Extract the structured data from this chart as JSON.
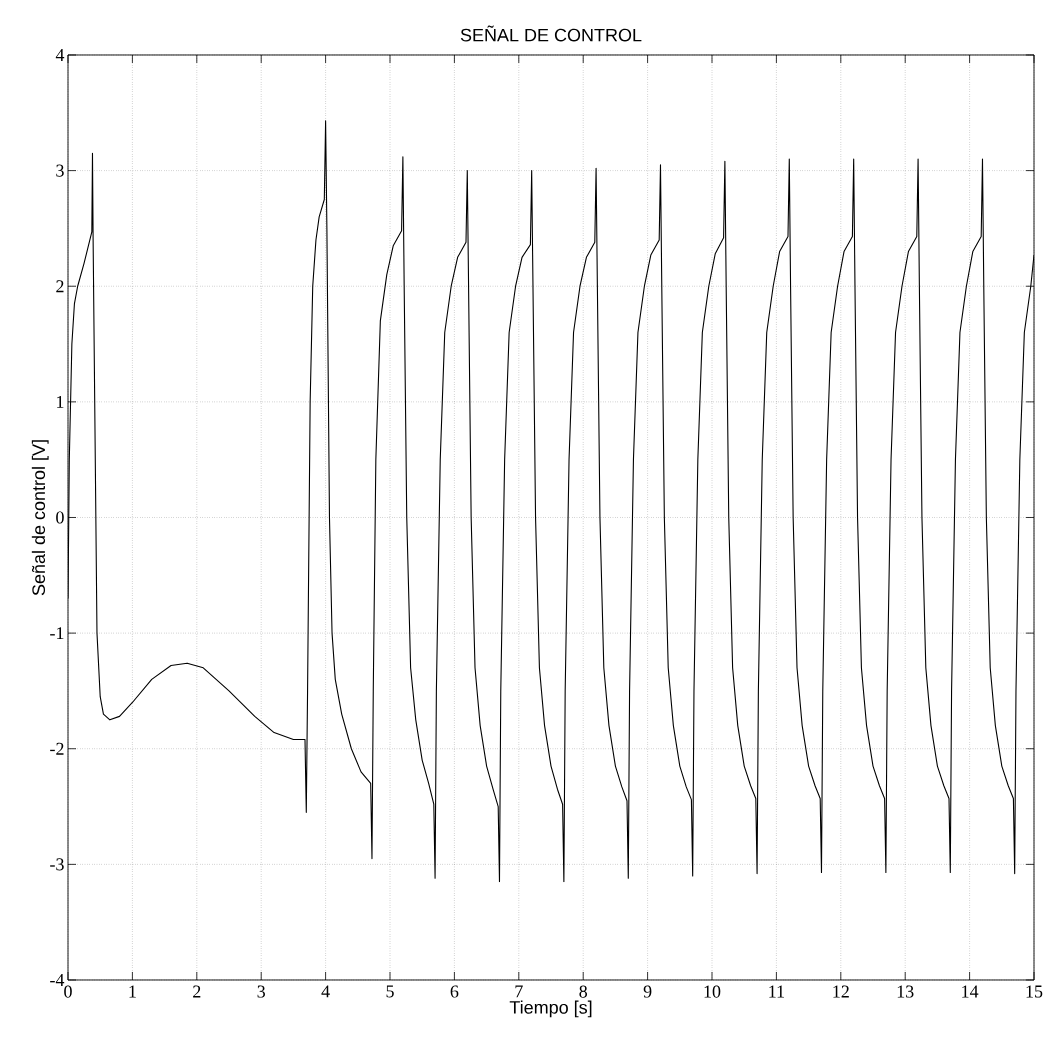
{
  "chart_data": {
    "type": "line",
    "title": "SEÑAL DE CONTROL",
    "xlabel": "Tiempo [s]",
    "ylabel": "Señal de control [V]",
    "xlim": [
      0,
      15
    ],
    "ylim": [
      -4,
      4
    ],
    "xticks": [
      0,
      1,
      2,
      3,
      4,
      5,
      6,
      7,
      8,
      9,
      10,
      11,
      12,
      13,
      14,
      15
    ],
    "yticks": [
      -4,
      -3,
      -2,
      -1,
      0,
      1,
      2,
      3,
      4
    ],
    "grid": true,
    "marker": "none",
    "line_style": "solid",
    "series": [
      {
        "color": "#000000",
        "x": [
          0,
          0.02,
          0.06,
          0.1,
          0.15,
          0.25,
          0.37,
          0.38,
          0.39,
          0.45,
          0.5,
          0.55,
          0.65,
          0.8,
          1.0,
          1.3,
          1.6,
          1.85,
          2.1,
          2.5,
          2.9,
          3.2,
          3.5,
          3.68,
          3.7,
          3.72,
          3.76,
          3.8,
          3.85,
          3.9,
          3.98,
          4.0,
          4.02,
          4.06,
          4.1,
          4.15,
          4.25,
          4.4,
          4.55,
          4.7,
          4.72,
          4.74,
          4.78,
          4.85,
          4.95,
          5.05,
          5.18,
          5.2,
          5.22,
          5.26,
          5.32,
          5.4,
          5.5,
          5.6,
          5.68,
          5.7,
          5.72,
          5.78,
          5.85,
          5.95,
          6.05,
          6.18,
          6.2,
          6.22,
          6.26,
          6.32,
          6.4,
          6.5,
          6.6,
          6.68,
          6.7,
          6.72,
          6.78,
          6.85,
          6.95,
          7.05,
          7.18,
          7.2,
          7.22,
          7.26,
          7.32,
          7.4,
          7.5,
          7.6,
          7.68,
          7.7,
          7.72,
          7.78,
          7.85,
          7.95,
          8.05,
          8.18,
          8.2,
          8.22,
          8.26,
          8.32,
          8.4,
          8.5,
          8.6,
          8.68,
          8.7,
          8.72,
          8.78,
          8.85,
          8.95,
          9.05,
          9.18,
          9.2,
          9.22,
          9.26,
          9.32,
          9.4,
          9.5,
          9.6,
          9.68,
          9.7,
          9.72,
          9.78,
          9.85,
          9.95,
          10.05,
          10.18,
          10.2,
          10.22,
          10.26,
          10.32,
          10.4,
          10.5,
          10.6,
          10.68,
          10.7,
          10.72,
          10.78,
          10.85,
          10.95,
          11.05,
          11.18,
          11.2,
          11.22,
          11.26,
          11.32,
          11.4,
          11.5,
          11.6,
          11.68,
          11.7,
          11.72,
          11.78,
          11.85,
          11.95,
          12.05,
          12.18,
          12.2,
          12.22,
          12.26,
          12.32,
          12.4,
          12.5,
          12.6,
          12.68,
          12.7,
          12.72,
          12.78,
          12.85,
          12.95,
          13.05,
          13.18,
          13.2,
          13.22,
          13.26,
          13.32,
          13.4,
          13.5,
          13.6,
          13.68,
          13.7,
          13.72,
          13.78,
          13.85,
          13.95,
          14.05,
          14.18,
          14.2,
          14.22,
          14.26,
          14.32,
          14.4,
          14.5,
          14.6,
          14.68,
          14.7,
          14.72,
          14.78,
          14.85,
          14.95,
          15.0
        ],
        "values": [
          -0.7,
          0.5,
          1.5,
          1.85,
          2.0,
          2.2,
          2.47,
          3.15,
          2.4,
          -1.0,
          -1.55,
          -1.7,
          -1.75,
          -1.72,
          -1.6,
          -1.4,
          -1.28,
          -1.26,
          -1.3,
          -1.5,
          -1.72,
          -1.86,
          -1.92,
          -1.92,
          -2.55,
          -1.5,
          1.0,
          2.0,
          2.4,
          2.6,
          2.75,
          3.43,
          2.5,
          0,
          -1.0,
          -1.4,
          -1.7,
          -2.0,
          -2.2,
          -2.3,
          -2.95,
          -1.5,
          0.5,
          1.7,
          2.1,
          2.35,
          2.48,
          3.12,
          2.0,
          0,
          -1.3,
          -1.75,
          -2.1,
          -2.3,
          -2.48,
          -3.12,
          -1.5,
          0.5,
          1.6,
          2.0,
          2.25,
          2.38,
          3.0,
          2.0,
          0,
          -1.3,
          -1.8,
          -2.15,
          -2.35,
          -2.5,
          -3.15,
          -1.5,
          0.5,
          1.6,
          2.0,
          2.25,
          2.36,
          3.0,
          2.0,
          0,
          -1.3,
          -1.8,
          -2.15,
          -2.35,
          -2.48,
          -3.15,
          -1.5,
          0.5,
          1.6,
          2.0,
          2.25,
          2.38,
          3.02,
          2.0,
          0,
          -1.3,
          -1.8,
          -2.15,
          -2.33,
          -2.45,
          -3.12,
          -1.5,
          0.5,
          1.6,
          2.0,
          2.27,
          2.4,
          3.05,
          2.0,
          0,
          -1.3,
          -1.8,
          -2.15,
          -2.33,
          -2.44,
          -3.1,
          -1.5,
          0.5,
          1.6,
          2.0,
          2.28,
          2.42,
          3.08,
          2.0,
          0,
          -1.3,
          -1.8,
          -2.15,
          -2.32,
          -2.43,
          -3.08,
          -1.5,
          0.5,
          1.6,
          2.0,
          2.3,
          2.43,
          3.1,
          2.0,
          0,
          -1.3,
          -1.8,
          -2.15,
          -2.32,
          -2.43,
          -3.07,
          -1.5,
          0.5,
          1.6,
          2.0,
          2.3,
          2.43,
          3.1,
          2.0,
          0,
          -1.3,
          -1.8,
          -2.15,
          -2.32,
          -2.43,
          -3.07,
          -1.5,
          0.5,
          1.6,
          2.0,
          2.3,
          2.43,
          3.1,
          2.0,
          0,
          -1.3,
          -1.8,
          -2.15,
          -2.32,
          -2.43,
          -3.07,
          -1.5,
          0.5,
          1.6,
          2.0,
          2.3,
          2.43,
          3.1,
          2.0,
          0,
          -1.3,
          -1.8,
          -2.15,
          -2.32,
          -2.43,
          -3.08,
          -1.5,
          0.5,
          1.6,
          2.0,
          2.27
        ]
      }
    ]
  }
}
